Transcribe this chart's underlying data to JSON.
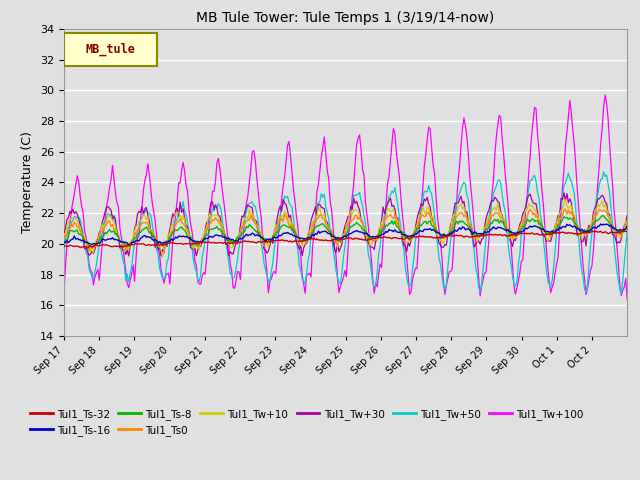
{
  "title": "MB Tule Tower: Tule Temps 1 (3/19/14-now)",
  "ylabel": "Temperature (C)",
  "ylim": [
    14,
    34
  ],
  "yticks": [
    14,
    16,
    18,
    20,
    22,
    24,
    26,
    28,
    30,
    32,
    34
  ],
  "bg_color": "#e0e0e0",
  "legend_label": "MB_tule",
  "legend_box_facecolor": "#ffffcc",
  "legend_text_color": "#880000",
  "legend_border_color": "#888800",
  "day_labels": [
    "Sep 17",
    "Sep 18",
    "Sep 19",
    "Sep 20",
    "Sep 21",
    "Sep 22",
    "Sep 23",
    "Sep 24",
    "Sep 25",
    "Sep 26",
    "Sep 27",
    "Sep 28",
    "Sep 29",
    "Sep 30",
    "Oct 1",
    "Oct 2"
  ],
  "colors": {
    "ts32": "#cc0000",
    "ts16": "#0000cc",
    "ts8": "#00bb00",
    "ts0": "#ff8800",
    "tw10": "#cccc00",
    "tw30": "#aa00aa",
    "tw50": "#00cccc",
    "tw100": "#ff00ff"
  },
  "legend_entries_row1": [
    [
      "Tul1_Ts-32",
      "#cc0000"
    ],
    [
      "Tul1_Ts-16",
      "#0000cc"
    ],
    [
      "Tul1_Ts-8",
      "#00bb00"
    ],
    [
      "Tul1_Ts0",
      "#ff8800"
    ],
    [
      "Tul1_Tw+10",
      "#cccc00"
    ],
    [
      "Tul1_Tw+30",
      "#aa00aa"
    ]
  ],
  "legend_entries_row2": [
    [
      "Tul1_Tw+50",
      "#00cccc"
    ],
    [
      "Tul1_Tw+100",
      "#ff00ff"
    ]
  ]
}
